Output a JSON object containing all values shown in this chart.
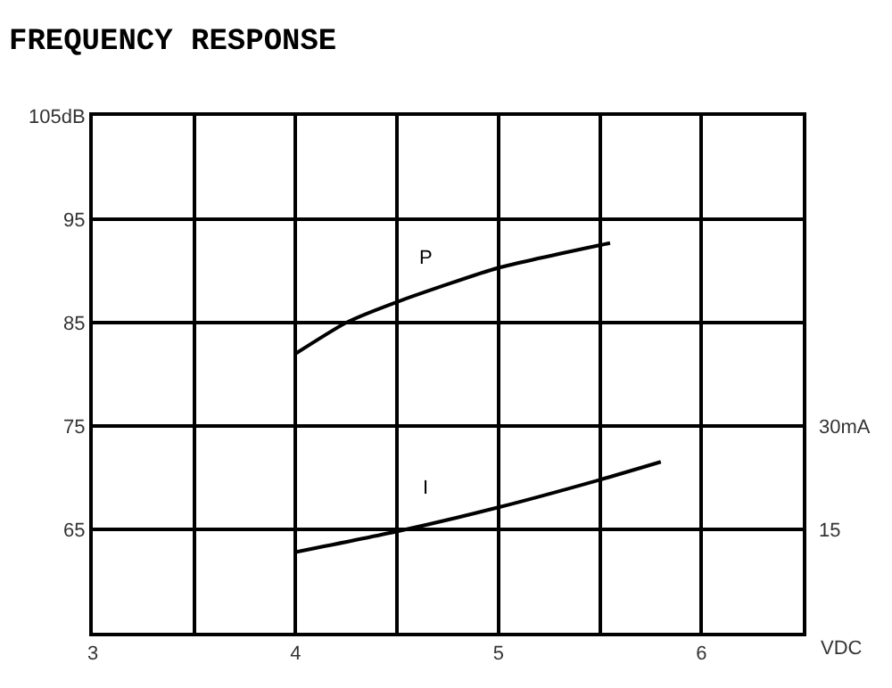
{
  "chart_data": {
    "type": "line",
    "title": "FREQUENCY RESPONSE",
    "xlabel": "VDC",
    "xlim": [
      3,
      6.5
    ],
    "xticks": [
      3,
      {
        "value": 3.5,
        "label": null
      },
      4,
      {
        "value": 4.5,
        "label": null
      },
      5,
      {
        "value": 5.5,
        "label": null
      },
      6,
      {
        "value": 6.5,
        "label": null
      }
    ],
    "ylim": [
      55,
      105
    ],
    "yticks": [
      {
        "value": 55,
        "label": null
      },
      65,
      75,
      85,
      95,
      {
        "value": 105,
        "label": "105dB"
      }
    ],
    "y2lim": [
      0,
      75
    ],
    "y2ticks": [
      15,
      {
        "value": 30,
        "label": "30mA"
      }
    ],
    "grid": true,
    "legend": false,
    "marker": "none",
    "line_style": "solid",
    "series": [
      {
        "name": "P",
        "color": "#000000",
        "x": [
          4.0,
          4.25,
          4.5,
          5.0,
          5.5,
          5.55
        ],
        "values": [
          82,
          85,
          87,
          90.3,
          92.5,
          92.7
        ]
      },
      {
        "name": "I",
        "color": "#000000",
        "axis": "y2",
        "x": [
          4.0,
          4.5,
          5.0,
          5.5,
          5.8
        ],
        "values": [
          11.7,
          14.7,
          18.2,
          22.2,
          24.8
        ]
      }
    ]
  }
}
